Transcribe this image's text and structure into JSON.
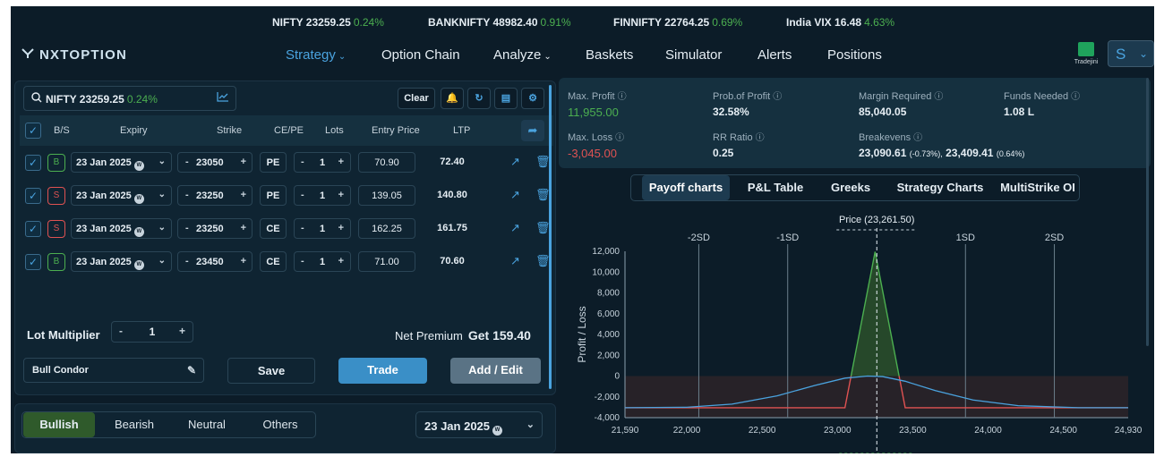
{
  "ticker": [
    {
      "name": "NIFTY",
      "value": "23259.25",
      "change": "0.24%"
    },
    {
      "name": "BANKNIFTY",
      "value": "48982.40",
      "change": "0.91%"
    },
    {
      "name": "FINNIFTY",
      "value": "22764.25",
      "change": "0.69%"
    },
    {
      "name": "India VIX",
      "value": "16.48",
      "change": "4.63%"
    }
  ],
  "nav": {
    "logo": "NXTOPTION",
    "items": [
      "Strategy",
      "Option Chain",
      "Analyze",
      "Baskets",
      "Simulator",
      "Alerts",
      "Positions"
    ],
    "broker_label": "Tradejini",
    "user_initial": "S"
  },
  "builder": {
    "search_symbol": "NIFTY 23259.25",
    "search_change": "0.24%",
    "clear_label": "Clear",
    "headers": {
      "bs": "B/S",
      "expiry": "Expiry",
      "strike": "Strike",
      "cepe": "CE/PE",
      "lots": "Lots",
      "entry": "Entry Price",
      "ltp": "LTP"
    },
    "legs": [
      {
        "side": "B",
        "expiry": "23 Jan 2025",
        "expiry_badge": "W",
        "strike": "23050",
        "type": "PE",
        "lots": "1",
        "entry": "70.90",
        "ltp": "72.40"
      },
      {
        "side": "S",
        "expiry": "23 Jan 2025",
        "expiry_badge": "W",
        "strike": "23250",
        "type": "PE",
        "lots": "1",
        "entry": "139.05",
        "ltp": "140.80"
      },
      {
        "side": "S",
        "expiry": "23 Jan 2025",
        "expiry_badge": "W",
        "strike": "23250",
        "type": "CE",
        "lots": "1",
        "entry": "162.25",
        "ltp": "161.75"
      },
      {
        "side": "B",
        "expiry": "23 Jan 2025",
        "expiry_badge": "W",
        "strike": "23450",
        "type": "CE",
        "lots": "1",
        "entry": "71.00",
        "ltp": "70.60"
      }
    ],
    "lot_multiplier_label": "Lot Multiplier",
    "lot_multiplier": "1",
    "net_premium_label": "Net Premium",
    "net_premium_value": "Get 159.40",
    "strategy_name": "Bull Condor",
    "save_label": "Save",
    "trade_label": "Trade",
    "add_edit_label": "Add / Edit"
  },
  "filters": {
    "items": [
      "Bullish",
      "Bearish",
      "Neutral",
      "Others"
    ],
    "active": "Bullish",
    "expiry": "23 Jan 2025",
    "expiry_badge": "W"
  },
  "metrics": {
    "max_profit_label": "Max. Profit",
    "max_profit": "11,955.00",
    "pop_label": "Prob.of Profit",
    "pop": "32.58%",
    "margin_label": "Margin Required",
    "margin": "85,040.05",
    "funds_label": "Funds Needed",
    "funds": "1.08 L",
    "max_loss_label": "Max. Loss",
    "max_loss": "-3,045.00",
    "rr_label": "RR Ratio",
    "rr": "0.25",
    "breakevens_label": "Breakevens",
    "be1": "23,090.61",
    "be1_pct": "(-0.73%),",
    "be2": "23,409.41",
    "be2_pct": "(0.64%)"
  },
  "tabs": [
    "Payoff charts",
    "P&L Table",
    "Greeks",
    "Strategy Charts",
    "MultiStrike OI"
  ],
  "colors": {
    "profit": "#4caf50",
    "loss": "#e05252",
    "accent": "#4aa3df",
    "bullish": "#2f5a2b"
  },
  "chart_data": {
    "type": "line",
    "ylabel": "Profit / Loss",
    "xlim": [
      21590,
      24930
    ],
    "ylim": [
      -4000,
      12000
    ],
    "x_ticks": [
      "21,590",
      "22,000",
      "22,500",
      "23,000",
      "23,500",
      "24,000",
      "24,500",
      "24,930"
    ],
    "x_tick_values": [
      21590,
      22000,
      22500,
      23000,
      23500,
      24000,
      24500,
      24930
    ],
    "y_ticks": [
      "12,000",
      "10,000",
      "8,000",
      "6,000",
      "4,000",
      "2,000",
      "0",
      "-2,000",
      "-4,000"
    ],
    "y_tick_values": [
      12000,
      10000,
      8000,
      6000,
      4000,
      2000,
      0,
      -2000,
      -4000
    ],
    "price_label": "Price (23,261.50)",
    "price": 23261.5,
    "sd_lines": [
      {
        "label": "-2SD",
        "x": 22080
      },
      {
        "label": "-1SD",
        "x": 22670
      },
      {
        "label": "1SD",
        "x": 23850
      },
      {
        "label": "2SD",
        "x": 24440
      }
    ],
    "series": [
      {
        "values": [
          [
            21590,
            -3045
          ],
          [
            23050,
            -3045
          ],
          [
            23250,
            11955
          ],
          [
            23450,
            -3045
          ],
          [
            24930,
            -3045
          ]
        ]
      },
      {
        "values": [
          [
            21590,
            -3045
          ],
          [
            22000,
            -3000
          ],
          [
            22300,
            -2700
          ],
          [
            22600,
            -1900
          ],
          [
            22850,
            -900
          ],
          [
            23050,
            -200
          ],
          [
            23200,
            0
          ],
          [
            23300,
            -50
          ],
          [
            23450,
            -500
          ],
          [
            23650,
            -1400
          ],
          [
            23900,
            -2300
          ],
          [
            24200,
            -2850
          ],
          [
            24600,
            -3040
          ],
          [
            24930,
            -3045
          ]
        ]
      }
    ]
  }
}
